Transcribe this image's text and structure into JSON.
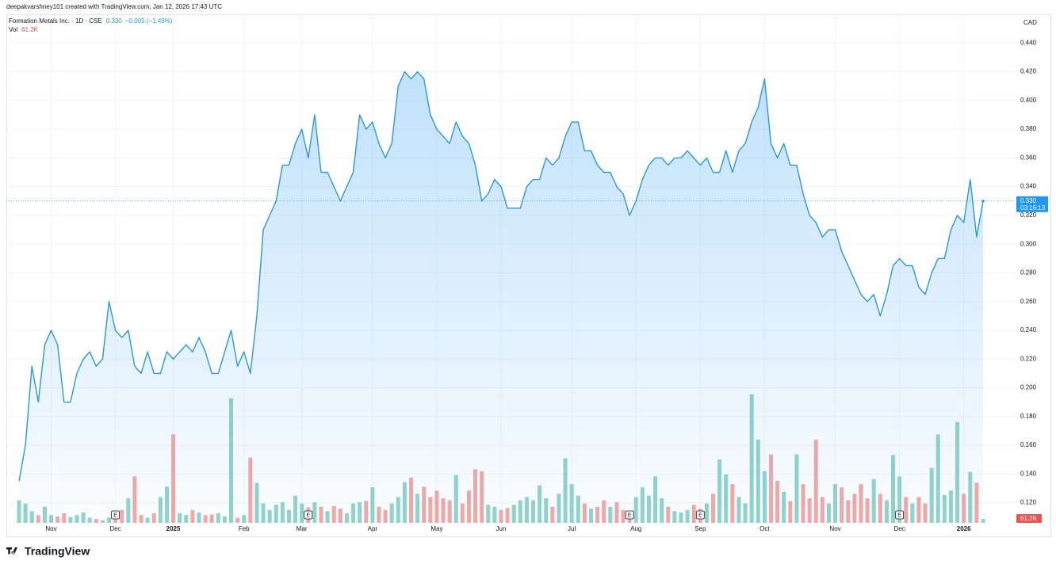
{
  "chart_data": {
    "type": "area",
    "header": "deepakvarshney101 created with TradingView.com, Jan 12, 2026 17:43 UTC",
    "currency": "CAD",
    "brand": "TradingView",
    "grid": true,
    "categories": [
      null,
      null,
      null,
      null,
      null,
      "Nov",
      null,
      null,
      null,
      null,
      null,
      null,
      null,
      null,
      null,
      "Dec",
      null,
      null,
      null,
      null,
      null,
      null,
      null,
      null,
      "2025",
      null,
      null,
      null,
      null,
      null,
      null,
      null,
      null,
      null,
      null,
      "Feb",
      null,
      null,
      null,
      null,
      null,
      null,
      null,
      null,
      "Mar",
      null,
      null,
      null,
      null,
      null,
      null,
      null,
      null,
      null,
      null,
      "Apr",
      null,
      null,
      null,
      null,
      null,
      null,
      null,
      null,
      null,
      "May",
      null,
      null,
      null,
      null,
      null,
      null,
      null,
      null,
      null,
      "Jun",
      null,
      null,
      null,
      null,
      null,
      null,
      null,
      null,
      null,
      null,
      "Jul",
      null,
      null,
      null,
      null,
      null,
      null,
      null,
      null,
      null,
      "Aug",
      null,
      null,
      null,
      null,
      null,
      null,
      null,
      null,
      null,
      "Sep",
      null,
      null,
      null,
      null,
      null,
      null,
      null,
      null,
      null,
      "Oct",
      null,
      null,
      null,
      null,
      null,
      null,
      null,
      null,
      null,
      null,
      "Nov",
      null,
      null,
      null,
      null,
      null,
      null,
      null,
      null,
      null,
      "Dec",
      null,
      null,
      null,
      null,
      null,
      null,
      null,
      null,
      null,
      "2026",
      null,
      null,
      null
    ],
    "series": [
      {
        "name": "Formation Metals Inc. · 1D · CSE",
        "color": "#2c98d8",
        "last": {
          "value": 0.33,
          "label": "0.330"
        },
        "change": "−0.005 (−1.49%)",
        "countdown": "03:16:13",
        "values": [
          0.135,
          0.16,
          0.215,
          0.19,
          0.23,
          0.24,
          0.23,
          0.19,
          0.19,
          0.21,
          0.22,
          0.225,
          0.215,
          0.22,
          0.26,
          0.24,
          0.235,
          0.24,
          0.215,
          0.21,
          0.225,
          0.21,
          0.21,
          0.225,
          0.22,
          0.225,
          0.23,
          0.225,
          0.235,
          0.225,
          0.21,
          0.21,
          0.225,
          0.24,
          0.215,
          0.225,
          0.21,
          0.25,
          0.31,
          0.32,
          0.33,
          0.355,
          0.355,
          0.37,
          0.38,
          0.36,
          0.39,
          0.35,
          0.35,
          0.34,
          0.33,
          0.34,
          0.35,
          0.39,
          0.38,
          0.385,
          0.37,
          0.36,
          0.37,
          0.41,
          0.42,
          0.415,
          0.42,
          0.415,
          0.39,
          0.38,
          0.375,
          0.37,
          0.385,
          0.375,
          0.37,
          0.355,
          0.33,
          0.335,
          0.345,
          0.34,
          0.325,
          0.325,
          0.325,
          0.34,
          0.345,
          0.345,
          0.36,
          0.355,
          0.36,
          0.375,
          0.385,
          0.385,
          0.365,
          0.365,
          0.355,
          0.35,
          0.35,
          0.34,
          0.335,
          0.32,
          0.33,
          0.345,
          0.355,
          0.36,
          0.36,
          0.355,
          0.36,
          0.36,
          0.365,
          0.36,
          0.355,
          0.36,
          0.35,
          0.35,
          0.365,
          0.35,
          0.365,
          0.37,
          0.385,
          0.395,
          0.415,
          0.37,
          0.36,
          0.37,
          0.355,
          0.355,
          0.335,
          0.32,
          0.315,
          0.305,
          0.31,
          0.31,
          0.295,
          0.285,
          0.275,
          0.265,
          0.26,
          0.265,
          0.25,
          0.265,
          0.285,
          0.29,
          0.285,
          0.285,
          0.27,
          0.265,
          0.28,
          0.29,
          0.29,
          0.31,
          0.32,
          0.315,
          0.345,
          0.305,
          0.33
        ]
      },
      {
        "name": "Vol",
        "axis": "volume",
        "up_color": "#93d3cb",
        "down_color": "#f3a9a6",
        "last": {
          "value": 61200,
          "label": "61.2K"
        },
        "vlim": [
          0,
          2000000
        ],
        "values": [
          350000,
          300000,
          180000,
          120000,
          250000,
          120000,
          100000,
          150000,
          90000,
          120000,
          160000,
          80000,
          60000,
          40000,
          80000,
          70000,
          200000,
          380000,
          720000,
          120000,
          80000,
          150000,
          400000,
          560000,
          1370000,
          150000,
          120000,
          200000,
          160000,
          120000,
          130000,
          150000,
          100000,
          1930000,
          80000,
          120000,
          1010000,
          620000,
          300000,
          200000,
          280000,
          320000,
          200000,
          420000,
          300000,
          240000,
          320000,
          250000,
          180000,
          260000,
          220000,
          150000,
          300000,
          320000,
          340000,
          550000,
          250000,
          200000,
          300000,
          400000,
          630000,
          700000,
          450000,
          560000,
          400000,
          500000,
          380000,
          350000,
          740000,
          300000,
          500000,
          830000,
          800000,
          280000,
          250000,
          200000,
          230000,
          280000,
          350000,
          400000,
          350000,
          580000,
          380000,
          250000,
          450000,
          1000000,
          600000,
          420000,
          300000,
          220000,
          250000,
          350000,
          250000,
          320000,
          200000,
          180000,
          400000,
          550000,
          420000,
          720000,
          380000,
          250000,
          180000,
          160000,
          200000,
          280000,
          220000,
          300000,
          450000,
          980000,
          750000,
          600000,
          400000,
          300000,
          1990000,
          1290000,
          800000,
          1060000,
          650000,
          480000,
          340000,
          1060000,
          600000,
          380000,
          1290000,
          400000,
          300000,
          600000,
          550000,
          350000,
          450000,
          600000,
          380000,
          680000,
          450000,
          350000,
          1050000,
          720000,
          400000,
          300000,
          400000,
          300000,
          850000,
          1370000,
          430000,
          500000,
          1560000,
          450000,
          790000,
          620000,
          61200
        ]
      }
    ],
    "earnings": [
      {
        "at": 15,
        "label": "E"
      },
      {
        "at": 45,
        "label": "E"
      },
      {
        "at": 95,
        "label": "E"
      },
      {
        "at": 106,
        "label": "E"
      },
      {
        "at": 137,
        "label": "E"
      }
    ],
    "ylim": [
      0.106,
      0.46
    ],
    "yticks": [
      {
        "value": 0.12,
        "label": "0.120"
      },
      {
        "value": 0.14,
        "label": "0.140"
      },
      {
        "value": 0.16,
        "label": "0.160"
      },
      {
        "value": 0.18,
        "label": "0.180"
      },
      {
        "value": 0.2,
        "label": "0.200"
      },
      {
        "value": 0.22,
        "label": "0.220"
      },
      {
        "value": 0.24,
        "label": "0.240"
      },
      {
        "value": 0.26,
        "label": "0.260"
      },
      {
        "value": 0.28,
        "label": "0.280"
      },
      {
        "value": 0.3,
        "label": "0.300"
      },
      {
        "value": 0.32,
        "label": "0.320"
      },
      {
        "value": 0.34,
        "label": "0.340"
      },
      {
        "value": 0.36,
        "label": "0.360"
      },
      {
        "value": 0.38,
        "label": "0.380"
      },
      {
        "value": 0.4,
        "label": "0.400"
      },
      {
        "value": 0.42,
        "label": "0.420"
      },
      {
        "value": 0.44,
        "label": "0.440"
      }
    ]
  }
}
